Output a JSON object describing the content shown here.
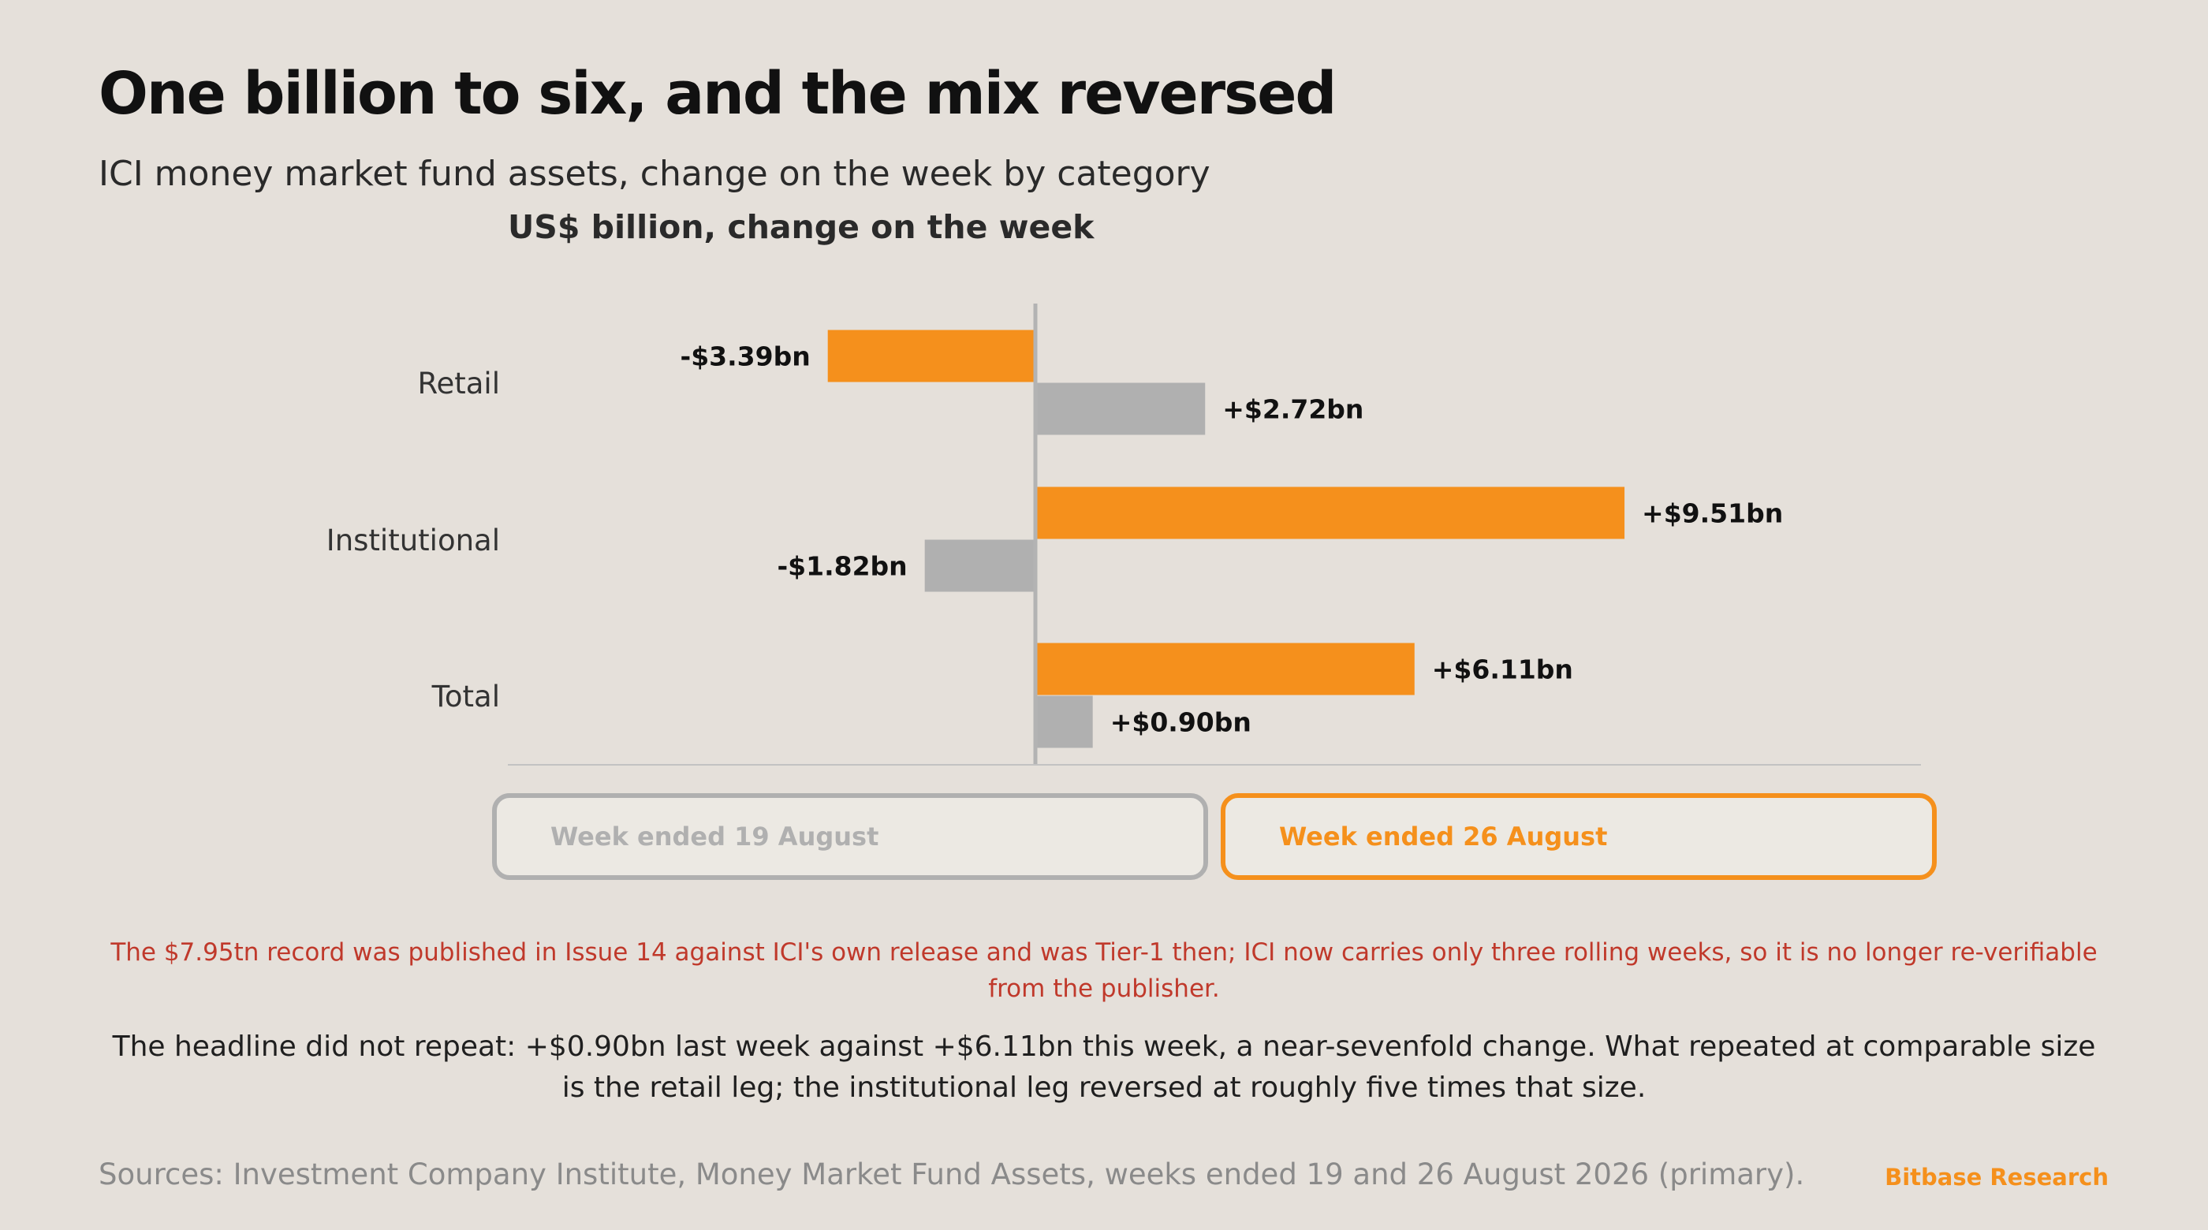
{
  "title": "One billion to six, and the mix reversed",
  "subtitle": "ICI money market fund assets, change on the week by category",
  "colors": {
    "background": "#e5e0da",
    "current": "#f5901c",
    "previous": "#b0b0b0",
    "note": "#c0392b"
  },
  "chart_data": {
    "type": "bar",
    "orientation": "horizontal",
    "title": "US$ billion, change on the week",
    "categories": [
      "Retail",
      "Institutional",
      "Total"
    ],
    "series": [
      {
        "name": "Week ended 26 August",
        "color": "#f5901c",
        "values": [
          -3.39,
          9.51,
          6.11
        ],
        "labels": [
          "-$3.39bn",
          "+$9.51bn",
          "+$6.11bn"
        ]
      },
      {
        "name": "Week ended 19 August",
        "color": "#b0b0b0",
        "values": [
          2.72,
          -1.82,
          0.9
        ],
        "labels": [
          "+$2.72bn",
          "-$1.82bn",
          "+$0.90bn"
        ]
      }
    ],
    "xlim": [
      -8.57,
      14.31
    ],
    "grid": false,
    "legend_position": "bottom"
  },
  "legend": {
    "previous": "Week ended 19 August",
    "current": "Week ended 26 August"
  },
  "note_red": "The $7.95tn record was published in Issue 14 against ICI's own release and was Tier-1 then; ICI now carries only three rolling weeks, so it is no longer re-verifiable from the publisher.",
  "note_main": "The headline did not repeat: +$0.90bn last week against +$6.11bn this week, a near-sevenfold change. What repeated at comparable size is the retail leg; the institutional leg reversed at roughly five times that size.",
  "sources": "Sources: Investment Company Institute, Money Market Fund Assets, weeks ended 19 and 26 August 2026 (primary).",
  "brand": "Bitbase Research"
}
